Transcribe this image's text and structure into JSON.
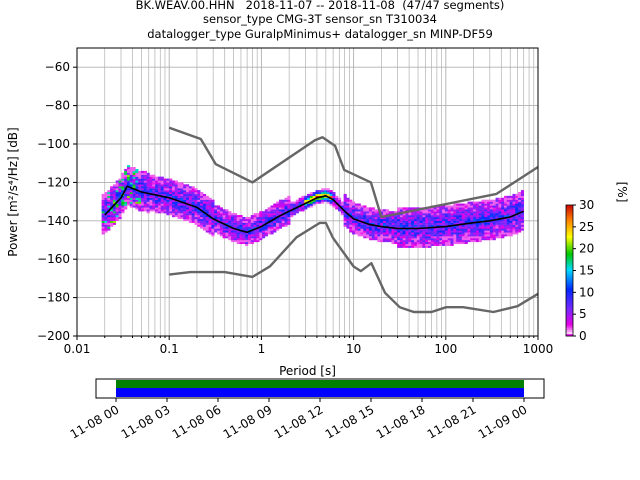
{
  "header": {
    "line1": "BK.WEAV.00.HHN   2018-11-07 -- 2018-11-08  (47/47 segments)",
    "line2": "sensor_type CMG-3T sensor_sn T310034",
    "line3": "datalogger_type GuralpMinimus+ datalogger_sn MINP-DF59"
  },
  "chart_data": [
    {
      "type": "heatmap",
      "title": "",
      "xlabel": "Period [s]",
      "ylabel": "Power [m²/s⁴/Hz] [dB]",
      "xscale": "log",
      "xlim": [
        0.01,
        1000
      ],
      "ylim": [
        -200,
        -50
      ],
      "x_ticks": [
        "0.01",
        "0.1",
        "1",
        "10",
        "100",
        "1000"
      ],
      "y_ticks": [
        "−200",
        "−180",
        "−160",
        "−140",
        "−120",
        "−100",
        "−80",
        "−60"
      ],
      "grid": true,
      "colorbar": {
        "label": "[%]",
        "range": [
          0,
          30
        ],
        "ticks": [
          "0",
          "5",
          "10",
          "15",
          "20",
          "25",
          "30"
        ]
      },
      "series": [
        {
          "role": "NHNM",
          "color": "#666666",
          "x": [
            0.1,
            0.22,
            0.32,
            0.8,
            3.8,
            4.6,
            6.3,
            7.9,
            15.4,
            20,
            354.8,
            1000
          ],
          "y": [
            -91.5,
            -97.4,
            -110.5,
            -120,
            -98,
            -96.5,
            -101,
            -113.5,
            -120,
            -138,
            -126,
            -112
          ]
        },
        {
          "role": "NLNM",
          "color": "#666666",
          "x": [
            0.1,
            0.17,
            0.4,
            0.8,
            1.24,
            2.4,
            4.3,
            5,
            6,
            10,
            12,
            15.6,
            21.9,
            31.6,
            45,
            70,
            101,
            154,
            328,
            600,
            1000
          ],
          "y": [
            -168,
            -166.7,
            -166.7,
            -169.2,
            -163.7,
            -148.6,
            -141.1,
            -141.1,
            -149,
            -163.8,
            -166.2,
            -162.1,
            -177.5,
            -185,
            -187.5,
            -187.5,
            -185,
            -185,
            -187.5,
            -184.5,
            -178
          ]
        },
        {
          "role": "mode",
          "color": "#000000",
          "x": [
            0.02,
            0.025,
            0.03,
            0.035,
            0.05,
            0.1,
            0.2,
            0.3,
            0.5,
            0.7,
            1,
            1.5,
            2,
            3,
            4,
            5,
            6,
            8,
            10,
            15,
            20,
            30,
            50,
            100,
            200,
            300,
            500,
            700
          ],
          "y": [
            -137,
            -132,
            -128,
            -122,
            -125,
            -128,
            -133,
            -139,
            -144,
            -146,
            -143,
            -138,
            -135,
            -131,
            -128,
            -127,
            -129,
            -135,
            -139,
            -142,
            -143,
            -144,
            -144,
            -143,
            -141,
            -140,
            -138,
            -135
          ]
        }
      ]
    },
    {
      "type": "bar",
      "title": "",
      "time_range": [
        "11-08 00",
        "11-09 00"
      ],
      "x_ticks": [
        "11-08 00",
        "11-08 03",
        "11-08 06",
        "11-08 09",
        "11-08 12",
        "11-08 15",
        "11-08 18",
        "11-08 21",
        "11-09 00"
      ],
      "series": [
        {
          "color": "#008000",
          "start": 0,
          "end": 24
        },
        {
          "color": "#0000ff",
          "start": 0,
          "end": 24
        }
      ]
    }
  ]
}
